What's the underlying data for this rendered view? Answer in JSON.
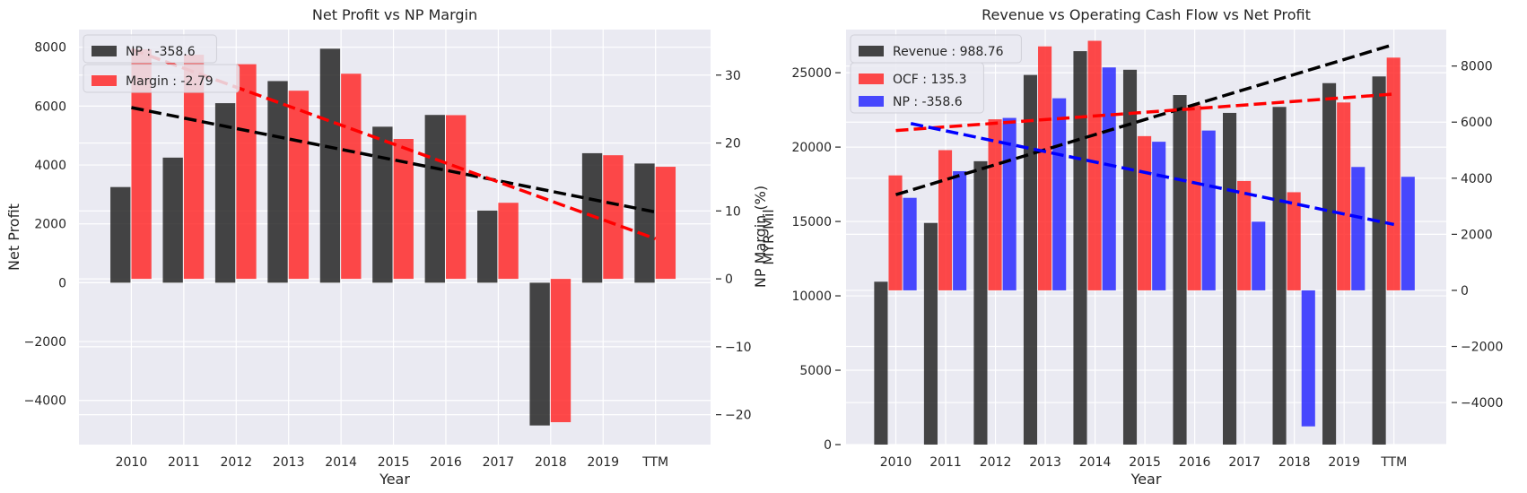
{
  "chart_data": [
    {
      "type": "bar",
      "title": "Net Profit vs NP Margin",
      "xlabel": "Year",
      "ylabel": "Net Profit",
      "ylabel_right": "NP Margin (%)",
      "categories": [
        "2010",
        "2011",
        "2012",
        "2013",
        "2014",
        "2015",
        "2016",
        "2017",
        "2018",
        "2019",
        "TTM"
      ],
      "ylim": [
        -5500,
        8600
      ],
      "ylim_right": [
        -24.4,
        36.7
      ],
      "yticks": [
        -4000,
        -2000,
        0,
        2000,
        4000,
        6000,
        8000
      ],
      "yticks_right": [
        -20,
        -10,
        0,
        10,
        20,
        30
      ],
      "grid": true,
      "legend_position": "top-left",
      "series": [
        {
          "name": "NP : -358.6",
          "axis": "left",
          "color": "#262626",
          "values": [
            3250,
            4250,
            6100,
            6850,
            7950,
            5300,
            5700,
            2450,
            -4850,
            4400,
            4050
          ],
          "trend": [
            5950,
            2400
          ]
        },
        {
          "name": "Margin : -2.79",
          "axis": "right",
          "color": "#ff2a2a",
          "values": [
            33.8,
            33.0,
            31.6,
            27.7,
            30.2,
            20.6,
            24.1,
            11.2,
            -21.1,
            18.2,
            16.5
          ],
          "trend": [
            33.8,
            5.9
          ]
        }
      ]
    },
    {
      "type": "bar",
      "title": "Revenue vs Operating Cash Flow vs Net Profit",
      "xlabel": "Year",
      "ylabel": "MYR Mil",
      "categories": [
        "2010",
        "2011",
        "2012",
        "2013",
        "2014",
        "2015",
        "2016",
        "2017",
        "2018",
        "2019",
        "TTM"
      ],
      "ylim": [
        0,
        27900
      ],
      "ylim_right": [
        -5500,
        9300
      ],
      "yticks": [
        0,
        5000,
        10000,
        15000,
        20000,
        25000
      ],
      "yticks_right": [
        -4000,
        -2000,
        0,
        2000,
        4000,
        6000,
        8000
      ],
      "grid": true,
      "legend_position": "top-left",
      "series": [
        {
          "name": "Revenue : 988.76",
          "axis": "left",
          "color": "#262626",
          "values": [
            10950,
            14900,
            19050,
            24850,
            26450,
            25200,
            23500,
            22300,
            22700,
            24300,
            24750
          ],
          "trend": [
            16800,
            26900
          ]
        },
        {
          "name": "OCF : 135.3",
          "axis": "right",
          "color": "#ff2a2a",
          "values": [
            4100,
            5000,
            6100,
            8700,
            8900,
            5500,
            6600,
            3900,
            3500,
            6700,
            8300
          ],
          "trend": [
            5700,
            7000
          ]
        },
        {
          "name": "NP : -358.6",
          "axis": "right",
          "color": "#2a2aff",
          "values": [
            3300,
            4250,
            6150,
            6850,
            7950,
            5300,
            5700,
            2450,
            -4850,
            4400,
            4050
          ],
          "trend": [
            5950,
            2350
          ]
        }
      ]
    }
  ]
}
